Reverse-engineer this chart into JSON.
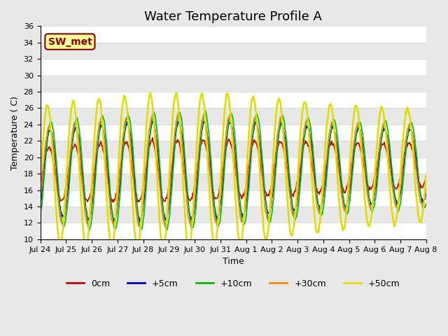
{
  "title": "Water Temperature Profile A",
  "xlabel": "Time",
  "ylabel": "Temperature ( C)",
  "ylim": [
    10,
    36
  ],
  "yticks": [
    10,
    12,
    14,
    16,
    18,
    20,
    22,
    24,
    26,
    28,
    30,
    32,
    34,
    36
  ],
  "xtick_labels": [
    "Jul 24",
    "Jul 25",
    "Jul 26",
    "Jul 27",
    "Jul 28",
    "Jul 29",
    "Jul 30",
    "Jul 31",
    "Aug 1",
    "Aug 2",
    "Aug 3",
    "Aug 4",
    "Aug 5",
    "Aug 6",
    "Aug 7",
    "Aug 8"
  ],
  "n_days": 15,
  "points_per_day": 48,
  "line_colors": [
    "#cc0000",
    "#0000cc",
    "#00bb00",
    "#ff8800",
    "#dddd00"
  ],
  "line_labels": [
    "0cm",
    "+5cm",
    "+10cm",
    "+30cm",
    "+50cm"
  ],
  "line_widths": [
    1.2,
    1.2,
    1.2,
    1.2,
    1.8
  ],
  "background_color": "#e8e8e8",
  "plot_bg_color": "#e8e8e8",
  "annotation_text": "SW_met",
  "annotation_bg": "#ffff99",
  "annotation_border": "#880000",
  "title_fontsize": 13,
  "axis_label_fontsize": 9,
  "tick_fontsize": 8,
  "legend_fontsize": 9,
  "base_temp": 18.0,
  "amplitude_0cm": 3.2,
  "amplitude_5cm": 5.2,
  "amplitude_10cm": 6.2,
  "amplitude_30cm": 5.8,
  "amplitude_50cm": 8.2,
  "phase_shift_5cm": -0.3,
  "phase_shift_10cm": -0.5,
  "phase_shift_30cm": -0.1,
  "phase_shift_50cm": 0.35,
  "trend_slope": 0.07,
  "peak_hour": 14,
  "white_band_color": "#ffffff"
}
